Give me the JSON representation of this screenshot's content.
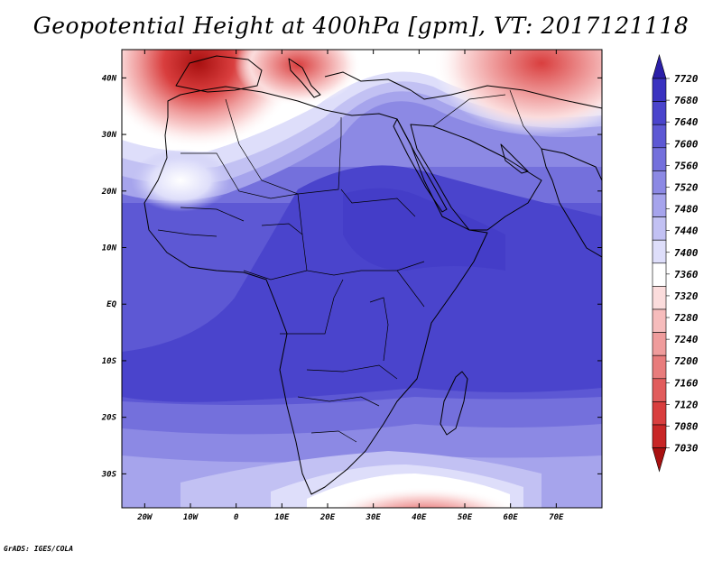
{
  "title": "Geopotential Height at 400hPa [gpm], VT: 2017121118",
  "footer": "GrADS: IGES/COLA",
  "map": {
    "region": "Africa",
    "lon_range": [
      -25,
      80
    ],
    "lat_range": [
      -36,
      45
    ],
    "x_ticks": [
      {
        "lon": -20,
        "label": "20W"
      },
      {
        "lon": -10,
        "label": "10W"
      },
      {
        "lon": 0,
        "label": "0"
      },
      {
        "lon": 10,
        "label": "10E"
      },
      {
        "lon": 20,
        "label": "20E"
      },
      {
        "lon": 30,
        "label": "30E"
      },
      {
        "lon": 40,
        "label": "40E"
      },
      {
        "lon": 50,
        "label": "50E"
      },
      {
        "lon": 60,
        "label": "60E"
      },
      {
        "lon": 70,
        "label": "70E"
      }
    ],
    "y_ticks": [
      {
        "lat": 40,
        "label": "40N"
      },
      {
        "lat": 30,
        "label": "30N"
      },
      {
        "lat": 20,
        "label": "20N"
      },
      {
        "lat": 10,
        "label": "10N"
      },
      {
        "lat": 0,
        "label": "EQ"
      },
      {
        "lat": -10,
        "label": "10S"
      },
      {
        "lat": -20,
        "label": "20S"
      },
      {
        "lat": -30,
        "label": "30S"
      }
    ],
    "min_value_region": "Iberia / western Mediterranean (red, low heights)",
    "high_value_region": "Central/East Africa and equatorial Indian Ocean (dark blue, high heights)"
  },
  "colorbar": {
    "levels": [
      "7720",
      "7680",
      "7640",
      "7600",
      "7560",
      "7520",
      "7480",
      "7440",
      "7400",
      "7360",
      "7320",
      "7280",
      "7240",
      "7200",
      "7160",
      "7120",
      "7080",
      "7030"
    ],
    "colors": [
      "#2b1fa8",
      "#3a32c0",
      "#4a44cc",
      "#5d58d4",
      "#7470dc",
      "#8c89e4",
      "#a6a4ec",
      "#c2c1f3",
      "#dedefa",
      "#ffffff",
      "#fbdcdc",
      "#f6bcbc",
      "#ef9c9c",
      "#e87c7c",
      "#e15c5c",
      "#d93e3e",
      "#c82626",
      "#a81010"
    ]
  }
}
